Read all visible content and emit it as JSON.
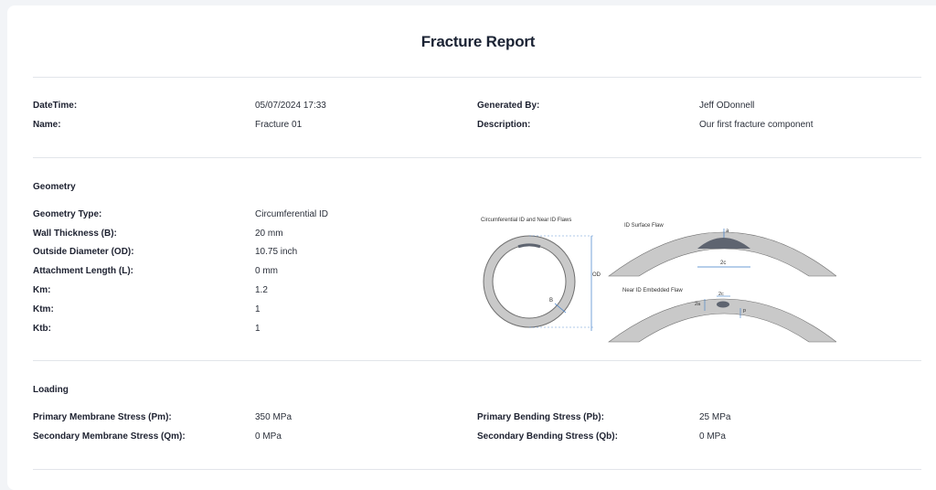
{
  "report": {
    "title": "Fracture Report"
  },
  "info": {
    "datetime_label": "DateTime:",
    "datetime_value": "05/07/2024 17:33",
    "name_label": "Name:",
    "name_value": "Fracture 01",
    "generated_by_label": "Generated By:",
    "generated_by_value": "Jeff ODonnell",
    "description_label": "Description:",
    "description_value": "Our first fracture component"
  },
  "geometry": {
    "section_title": "Geometry",
    "rows": [
      {
        "label": "Geometry Type:",
        "value": "Circumferential ID"
      },
      {
        "label": "Wall Thickness (B):",
        "value": "20 mm"
      },
      {
        "label": "Outside Diameter (OD):",
        "value": "10.75 inch"
      },
      {
        "label": "Attachment Length (L):",
        "value": "0 mm"
      },
      {
        "label": "Km:",
        "value": "1.2"
      },
      {
        "label": "Ktm:",
        "value": "1"
      },
      {
        "label": "Ktb:",
        "value": "1"
      }
    ],
    "diagram": {
      "ring_title": "Circumferential ID and Near ID Flaws",
      "surface_title": "ID Surface Flaw",
      "embedded_title": "Near ID Embedded Flaw",
      "od_label": "OD",
      "b_label": "B",
      "a_label": "a",
      "two_c_label": "2c",
      "two_a_label": "2a",
      "two_c_embedded_label": "2c",
      "p_label": "p",
      "colors": {
        "wall": "#c9c9c9",
        "wall_stroke": "#6f6f6f",
        "flaw": "#5e6470",
        "dim": "#3d7cc9"
      }
    }
  },
  "loading": {
    "section_title": "Loading",
    "pm_label": "Primary Membrane Stress (Pm):",
    "pm_value": "350 MPa",
    "qm_label": "Secondary Membrane Stress (Qm):",
    "qm_value": "0 MPa",
    "pb_label": "Primary Bending Stress (Pb):",
    "pb_value": "25 MPa",
    "qb_label": "Secondary Bending Stress (Qb):",
    "qb_value": "0 MPa"
  }
}
